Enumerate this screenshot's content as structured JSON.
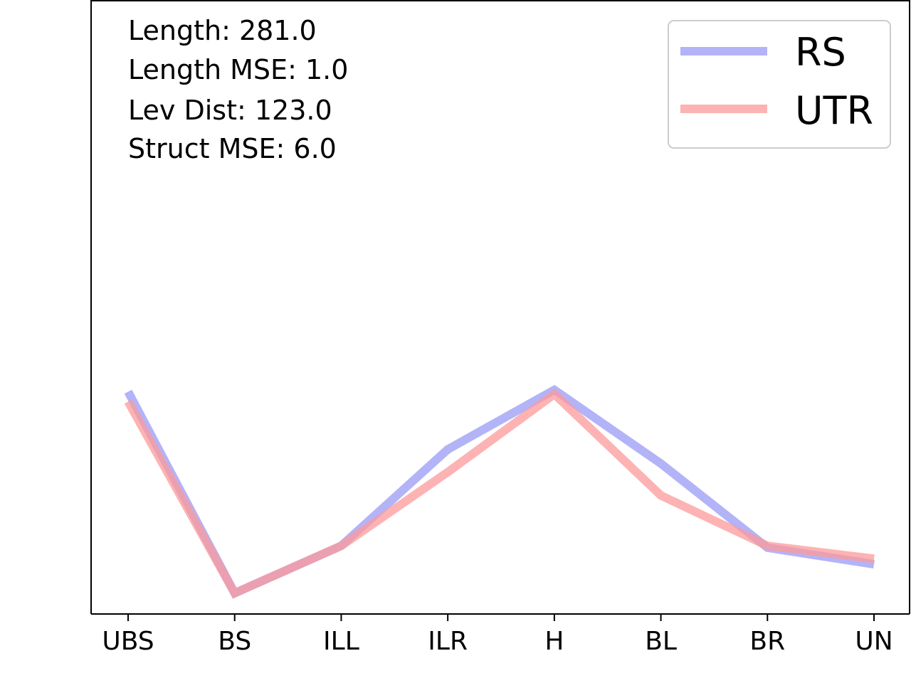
{
  "stats": {
    "length": "Length: 281.0",
    "length_mse": "Length MSE: 1.0",
    "lev_dist": "Lev Dist: 123.0",
    "struct_mse": "Struct MSE: 6.0"
  },
  "chart_data": {
    "type": "line",
    "categories": [
      "UBS",
      "BS",
      "ILL",
      "ILR",
      "H",
      "BL",
      "BR",
      "UN"
    ],
    "series": [
      {
        "name": "RS",
        "color": "#9999f5",
        "values": [
          0.362,
          0.034,
          0.111,
          0.268,
          0.365,
          0.245,
          0.108,
          0.081
        ]
      },
      {
        "name": "UTR",
        "color": "#fc9999",
        "values": [
          0.346,
          0.034,
          0.111,
          0.231,
          0.358,
          0.193,
          0.111,
          0.09
        ]
      }
    ],
    "ylim": [
      0.0,
      1.0
    ],
    "grid": false,
    "y_ticks_shown": false,
    "legend_position": "top-right"
  }
}
